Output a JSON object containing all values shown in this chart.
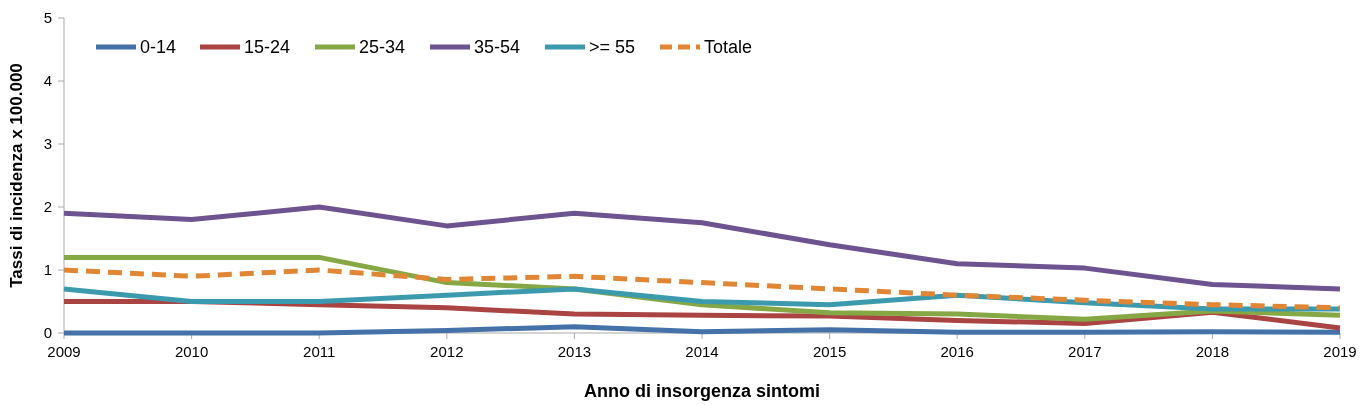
{
  "chart_data": {
    "type": "line",
    "xlabel": "Anno di insorgenza sintomi",
    "ylabel": "Tassi di incidenza x 100.000",
    "x": [
      2009,
      2010,
      2011,
      2012,
      2013,
      2014,
      2015,
      2016,
      2017,
      2018,
      2019
    ],
    "xlim": [
      2009,
      2019
    ],
    "xticks": [
      2009,
      2010,
      2011,
      2012,
      2013,
      2014,
      2015,
      2016,
      2017,
      2018,
      2019
    ],
    "ylim": [
      0,
      5
    ],
    "yticks": [
      0,
      1,
      2,
      3,
      4,
      5
    ],
    "grid": false,
    "legend": "top left",
    "marker": "none",
    "series": [
      {
        "name": "0-14",
        "color": "#4472a8",
        "values": [
          0,
          0,
          0,
          0.04,
          0.1,
          0.02,
          0.05,
          0.01,
          0.01,
          0.02,
          0.01
        ]
      },
      {
        "name": "15-24",
        "color": "#a94442",
        "values": [
          0.5,
          0.5,
          0.45,
          0.4,
          0.3,
          0.28,
          0.27,
          0.2,
          0.15,
          0.33,
          0.08
        ]
      },
      {
        "name": "25-34",
        "color": "#86a844",
        "values": [
          1.2,
          1.2,
          1.2,
          0.8,
          0.7,
          0.45,
          0.32,
          0.3,
          0.22,
          0.35,
          0.28
        ]
      },
      {
        "name": "35-54",
        "color": "#6e5391",
        "values": [
          1.9,
          1.8,
          2.0,
          1.7,
          1.9,
          1.75,
          1.4,
          1.1,
          1.03,
          0.77,
          0.7
        ]
      },
      {
        "name": ">= 55",
        "color": "#3c9aae",
        "values": [
          0.7,
          0.5,
          0.5,
          0.6,
          0.7,
          0.5,
          0.45,
          0.6,
          0.48,
          0.38,
          0.38
        ]
      },
      {
        "name": "Totale",
        "color": "#e08634",
        "line_style": "dashed",
        "values": [
          1.0,
          0.9,
          1.0,
          0.85,
          0.9,
          0.8,
          0.7,
          0.6,
          0.52,
          0.45,
          0.4
        ]
      }
    ]
  }
}
